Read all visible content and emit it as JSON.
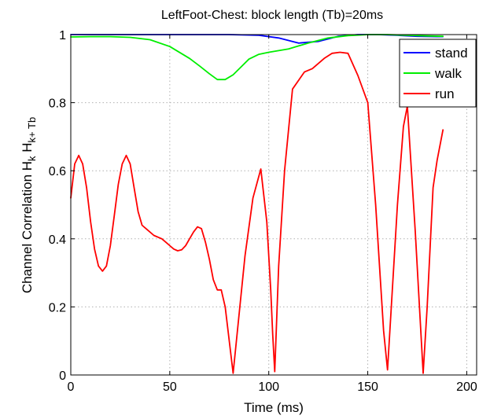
{
  "chart_data": {
    "type": "line",
    "title": "LeftFoot-Chest: block length (Tb)=20ms",
    "xlabel": "Time (ms)",
    "ylabel": {
      "main": "Channel Correlation H",
      "sub1": "k",
      "mid": " H",
      "sub2": "k+ Tb"
    },
    "xlim": [
      0,
      205
    ],
    "ylim": [
      0,
      1
    ],
    "xticks": [
      "0",
      "50",
      "100",
      "150",
      "200"
    ],
    "yticks": [
      "0",
      "0.2",
      "0.4",
      "0.6",
      "0.8",
      "1"
    ],
    "grid": true,
    "legend_position": "top-right",
    "series": [
      {
        "name": "stand",
        "color": "#0000ff",
        "x": [
          0,
          20,
          40,
          60,
          80,
          95,
          105,
          115,
          125,
          135,
          145,
          155,
          165,
          175,
          185,
          188
        ],
        "y": [
          1.0,
          1.0,
          1.0,
          1.0,
          1.0,
          0.998,
          0.99,
          0.975,
          0.98,
          0.995,
          1.0,
          1.0,
          0.998,
          0.995,
          0.994,
          0.994
        ]
      },
      {
        "name": "walk",
        "color": "#00ee00",
        "x": [
          0,
          10,
          20,
          30,
          40,
          50,
          60,
          65,
          70,
          74,
          78,
          82,
          86,
          90,
          95,
          100,
          110,
          120,
          130,
          140,
          150,
          160,
          170,
          180,
          188
        ],
        "y": [
          0.993,
          0.994,
          0.994,
          0.992,
          0.985,
          0.965,
          0.93,
          0.908,
          0.885,
          0.868,
          0.868,
          0.882,
          0.905,
          0.928,
          0.942,
          0.948,
          0.958,
          0.975,
          0.99,
          0.997,
          1.0,
          1.0,
          0.998,
          0.996,
          0.995
        ]
      },
      {
        "name": "run",
        "color": "#ff0000",
        "x": [
          0,
          2,
          4,
          6,
          8,
          10,
          12,
          14,
          16,
          18,
          20,
          22,
          24,
          26,
          28,
          30,
          32,
          34,
          36,
          38,
          42,
          46,
          48,
          50,
          52,
          54,
          56,
          58,
          60,
          62,
          64,
          66,
          68,
          70,
          72,
          74,
          76,
          78,
          82,
          88,
          92,
          96,
          99,
          101,
          102,
          103,
          105,
          108,
          112,
          118,
          122,
          128,
          132,
          136,
          140,
          145,
          150,
          154,
          158,
          160,
          165,
          168,
          170,
          174,
          178,
          180,
          183,
          185,
          188
        ],
        "y": [
          0.52,
          0.62,
          0.645,
          0.62,
          0.55,
          0.45,
          0.37,
          0.32,
          0.305,
          0.32,
          0.38,
          0.47,
          0.56,
          0.62,
          0.645,
          0.62,
          0.55,
          0.48,
          0.44,
          0.43,
          0.41,
          0.4,
          0.39,
          0.38,
          0.37,
          0.365,
          0.368,
          0.38,
          0.4,
          0.42,
          0.435,
          0.43,
          0.39,
          0.34,
          0.28,
          0.25,
          0.25,
          0.2,
          0.005,
          0.35,
          0.52,
          0.605,
          0.45,
          0.25,
          0.12,
          0.01,
          0.32,
          0.6,
          0.84,
          0.89,
          0.9,
          0.93,
          0.945,
          0.948,
          0.945,
          0.88,
          0.8,
          0.5,
          0.13,
          0.015,
          0.5,
          0.73,
          0.79,
          0.42,
          0.005,
          0.2,
          0.55,
          0.63,
          0.72
        ]
      }
    ]
  }
}
